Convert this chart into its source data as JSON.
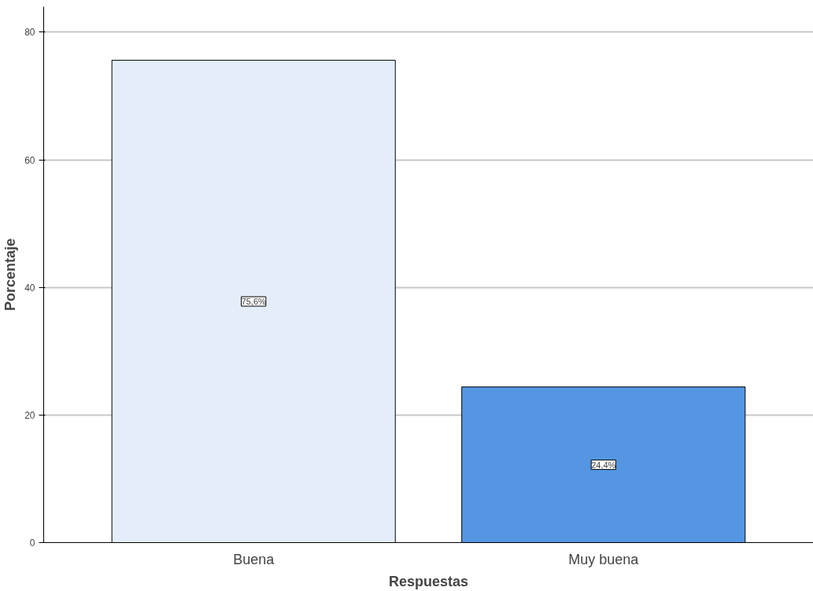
{
  "chart_data": {
    "type": "bar",
    "categories": [
      "Buena",
      "Muy buena"
    ],
    "values": [
      75.6,
      24.4
    ],
    "colors": [
      "#e3eefa",
      "#5596e3"
    ],
    "value_labels": [
      "75,6%",
      "24,4%"
    ],
    "xlabel": "Respuestas",
    "ylabel": "Porcentaje",
    "ylim": [
      0,
      84
    ],
    "yticks": [
      0,
      20,
      40,
      60,
      80
    ],
    "grid": "y"
  }
}
